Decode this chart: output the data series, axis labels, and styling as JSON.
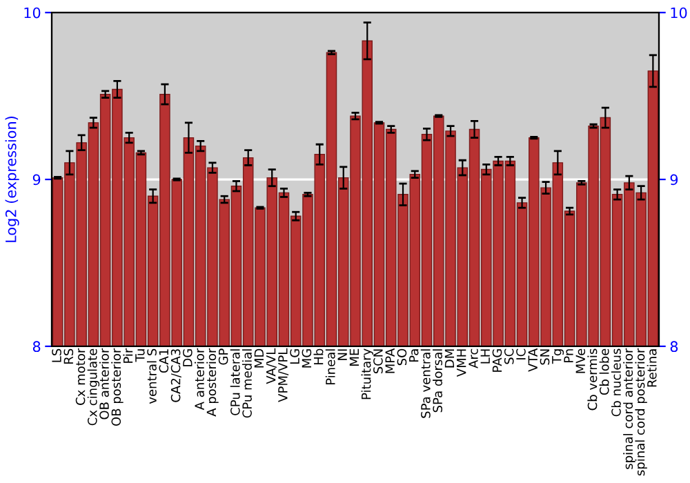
{
  "chart_data": {
    "type": "bar",
    "ylabel": "Log2 (expression)",
    "categories": [
      "LS",
      "RS",
      "Cx motor",
      "Cx cingulate",
      "OB anterior",
      "OB posterior",
      "Pir",
      "Tu",
      "ventral S",
      "CA1",
      "CA2/CA3",
      "DG",
      "A anterior",
      "A posterior",
      "GP",
      "CPu lateral",
      "CPu medial",
      "MD",
      "VA/VL",
      "VPM/VPL",
      "LG",
      "MG",
      "Hb",
      "Pineal",
      "NI",
      "ME",
      "Pituitary",
      "SCN",
      "MPA",
      "SO",
      "Pa",
      "SPa ventral",
      "SPa dorsal",
      "DM",
      "VMH",
      "Arc",
      "LH",
      "PAG",
      "SC",
      "IC",
      "VTA",
      "SN",
      "Tg",
      "Pn",
      "MVe",
      "Cb vermis",
      "Cb lobe",
      "Cb nucleus",
      "spinal cord anterior",
      "spinal cord posterior",
      "Retina"
    ],
    "values": [
      9.01,
      9.1,
      9.22,
      9.34,
      9.51,
      9.54,
      9.25,
      9.16,
      8.9,
      9.51,
      9.0,
      9.25,
      9.2,
      9.07,
      8.88,
      8.96,
      9.13,
      8.83,
      9.01,
      8.92,
      8.78,
      8.91,
      9.15,
      9.76,
      9.01,
      9.38,
      9.83,
      9.34,
      9.3,
      8.91,
      9.03,
      9.27,
      9.38,
      9.29,
      9.07,
      9.3,
      9.06,
      9.11,
      9.11,
      8.86,
      9.25,
      8.95,
      9.1,
      8.81,
      8.98,
      9.32,
      9.37,
      8.91,
      8.98,
      8.92,
      9.65
    ],
    "errors": [
      0.005,
      0.07,
      0.045,
      0.03,
      0.02,
      0.05,
      0.03,
      0.01,
      0.04,
      0.06,
      0.005,
      0.09,
      0.03,
      0.03,
      0.02,
      0.03,
      0.045,
      0.005,
      0.05,
      0.025,
      0.025,
      0.01,
      0.06,
      0.01,
      0.065,
      0.02,
      0.11,
      0.005,
      0.02,
      0.065,
      0.02,
      0.035,
      0.005,
      0.03,
      0.045,
      0.05,
      0.03,
      0.025,
      0.025,
      0.03,
      0.005,
      0.035,
      0.07,
      0.02,
      0.01,
      0.01,
      0.06,
      0.03,
      0.04,
      0.04,
      0.095
    ],
    "color": "#b83232",
    "ylim": [
      8,
      10
    ],
    "yticks": [
      8,
      9,
      10
    ],
    "y2lim": [
      8,
      10
    ],
    "y2ticks": [
      8,
      9,
      10
    ],
    "ref_lines": [
      {
        "axis": "y",
        "value": 9,
        "color": "#ffffff"
      }
    ]
  }
}
